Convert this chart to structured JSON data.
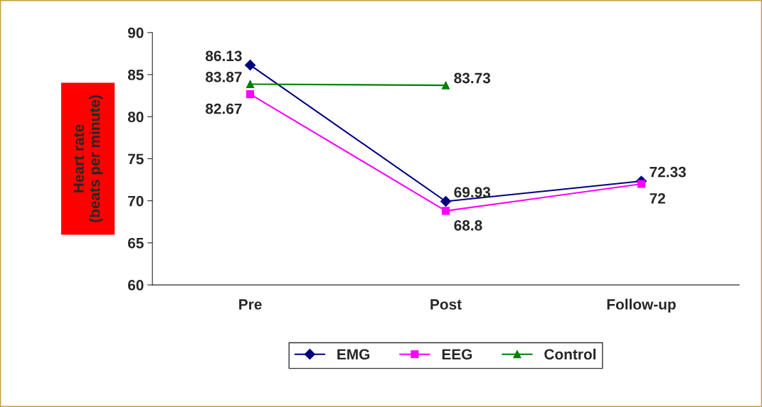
{
  "chart_data": {
    "type": "line",
    "ylabel": "Heart rate\n(beats per minute)",
    "categories": [
      "Pre",
      "Post",
      "Follow-up"
    ],
    "series": [
      {
        "name": "EMG",
        "color": "#000080",
        "marker": "diamond",
        "values": [
          86.13,
          69.93,
          72.33
        ]
      },
      {
        "name": "EEG",
        "color": "#ff00ff",
        "marker": "square",
        "values": [
          82.67,
          68.8,
          72
        ]
      },
      {
        "name": "Control",
        "color": "#008000",
        "marker": "triangle",
        "values": [
          83.87,
          83.73,
          null
        ]
      }
    ],
    "ylim": [
      60,
      90
    ],
    "yticks": [
      60,
      65,
      70,
      75,
      80,
      85,
      90
    ],
    "grid": false,
    "legend": "bottom",
    "data_labels": true
  }
}
